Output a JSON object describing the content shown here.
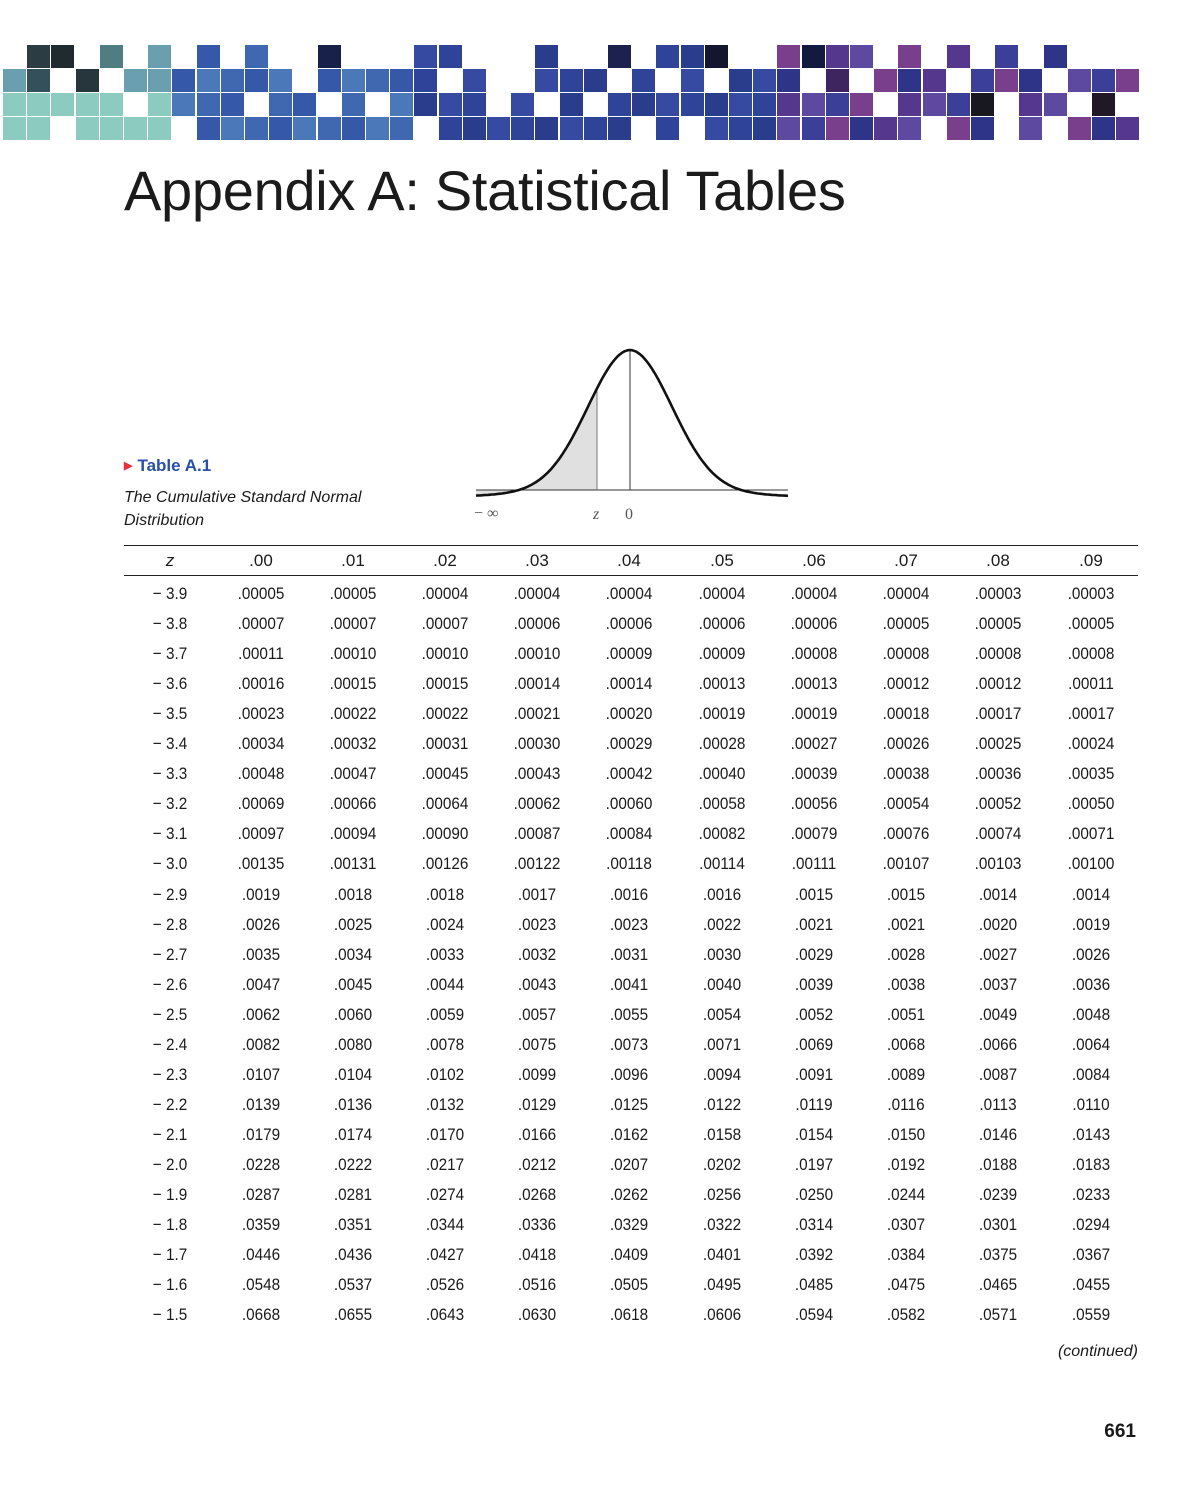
{
  "header": {
    "title": "Appendix A: Statistical Tables",
    "mosaic_colors": [
      "#8ccbc0",
      "#2b3d42",
      "#4a78b8",
      "#2f4498",
      "#5d4aa0",
      "#7a3f8c",
      "#1a1a2a"
    ]
  },
  "table": {
    "label": "Table A.1",
    "label_color": "#2a4fa8",
    "marker_color": "#e5323e",
    "caption": "The Cumulative Standard Normal Distribution",
    "figure": {
      "type": "normal-curve",
      "shaded": "left tail up to z",
      "labels": {
        "neg_inf": "− ∞",
        "z": "z",
        "zero": "0"
      }
    },
    "columns": [
      "z",
      ".00",
      ".01",
      ".02",
      ".03",
      ".04",
      ".05",
      ".06",
      ".07",
      ".08",
      ".09"
    ],
    "rows": [
      [
        "− 3.9",
        ".00005",
        ".00005",
        ".00004",
        ".00004",
        ".00004",
        ".00004",
        ".00004",
        ".00004",
        ".00003",
        ".00003"
      ],
      [
        "− 3.8",
        ".00007",
        ".00007",
        ".00007",
        ".00006",
        ".00006",
        ".00006",
        ".00006",
        ".00005",
        ".00005",
        ".00005"
      ],
      [
        "− 3.7",
        ".00011",
        ".00010",
        ".00010",
        ".00010",
        ".00009",
        ".00009",
        ".00008",
        ".00008",
        ".00008",
        ".00008"
      ],
      [
        "− 3.6",
        ".00016",
        ".00015",
        ".00015",
        ".00014",
        ".00014",
        ".00013",
        ".00013",
        ".00012",
        ".00012",
        ".00011"
      ],
      [
        "− 3.5",
        ".00023",
        ".00022",
        ".00022",
        ".00021",
        ".00020",
        ".00019",
        ".00019",
        ".00018",
        ".00017",
        ".00017"
      ],
      [
        "− 3.4",
        ".00034",
        ".00032",
        ".00031",
        ".00030",
        ".00029",
        ".00028",
        ".00027",
        ".00026",
        ".00025",
        ".00024"
      ],
      [
        "− 3.3",
        ".00048",
        ".00047",
        ".00045",
        ".00043",
        ".00042",
        ".00040",
        ".00039",
        ".00038",
        ".00036",
        ".00035"
      ],
      [
        "− 3.2",
        ".00069",
        ".00066",
        ".00064",
        ".00062",
        ".00060",
        ".00058",
        ".00056",
        ".00054",
        ".00052",
        ".00050"
      ],
      [
        "− 3.1",
        ".00097",
        ".00094",
        ".00090",
        ".00087",
        ".00084",
        ".00082",
        ".00079",
        ".00076",
        ".00074",
        ".00071"
      ],
      [
        "− 3.0",
        ".00135",
        ".00131",
        ".00126",
        ".00122",
        ".00118",
        ".00114",
        ".00111",
        ".00107",
        ".00103",
        ".00100"
      ],
      [
        "− 2.9",
        ".0019",
        ".0018",
        ".0018",
        ".0017",
        ".0016",
        ".0016",
        ".0015",
        ".0015",
        ".0014",
        ".0014"
      ],
      [
        "− 2.8",
        ".0026",
        ".0025",
        ".0024",
        ".0023",
        ".0023",
        ".0022",
        ".0021",
        ".0021",
        ".0020",
        ".0019"
      ],
      [
        "− 2.7",
        ".0035",
        ".0034",
        ".0033",
        ".0032",
        ".0031",
        ".0030",
        ".0029",
        ".0028",
        ".0027",
        ".0026"
      ],
      [
        "− 2.6",
        ".0047",
        ".0045",
        ".0044",
        ".0043",
        ".0041",
        ".0040",
        ".0039",
        ".0038",
        ".0037",
        ".0036"
      ],
      [
        "− 2.5",
        ".0062",
        ".0060",
        ".0059",
        ".0057",
        ".0055",
        ".0054",
        ".0052",
        ".0051",
        ".0049",
        ".0048"
      ],
      [
        "− 2.4",
        ".0082",
        ".0080",
        ".0078",
        ".0075",
        ".0073",
        ".0071",
        ".0069",
        ".0068",
        ".0066",
        ".0064"
      ],
      [
        "− 2.3",
        ".0107",
        ".0104",
        ".0102",
        ".0099",
        ".0096",
        ".0094",
        ".0091",
        ".0089",
        ".0087",
        ".0084"
      ],
      [
        "− 2.2",
        ".0139",
        ".0136",
        ".0132",
        ".0129",
        ".0125",
        ".0122",
        ".0119",
        ".0116",
        ".0113",
        ".0110"
      ],
      [
        "− 2.1",
        ".0179",
        ".0174",
        ".0170",
        ".0166",
        ".0162",
        ".0158",
        ".0154",
        ".0150",
        ".0146",
        ".0143"
      ],
      [
        "− 2.0",
        ".0228",
        ".0222",
        ".0217",
        ".0212",
        ".0207",
        ".0202",
        ".0197",
        ".0192",
        ".0188",
        ".0183"
      ],
      [
        "− 1.9",
        ".0287",
        ".0281",
        ".0274",
        ".0268",
        ".0262",
        ".0256",
        ".0250",
        ".0244",
        ".0239",
        ".0233"
      ],
      [
        "− 1.8",
        ".0359",
        ".0351",
        ".0344",
        ".0336",
        ".0329",
        ".0322",
        ".0314",
        ".0307",
        ".0301",
        ".0294"
      ],
      [
        "− 1.7",
        ".0446",
        ".0436",
        ".0427",
        ".0418",
        ".0409",
        ".0401",
        ".0392",
        ".0384",
        ".0375",
        ".0367"
      ],
      [
        "− 1.6",
        ".0548",
        ".0537",
        ".0526",
        ".0516",
        ".0505",
        ".0495",
        ".0485",
        ".0475",
        ".0465",
        ".0455"
      ],
      [
        "− 1.5",
        ".0668",
        ".0655",
        ".0643",
        ".0630",
        ".0618",
        ".0606",
        ".0594",
        ".0582",
        ".0571",
        ".0559"
      ]
    ],
    "continued": "(continued)"
  },
  "footer": {
    "page_number": "661"
  }
}
